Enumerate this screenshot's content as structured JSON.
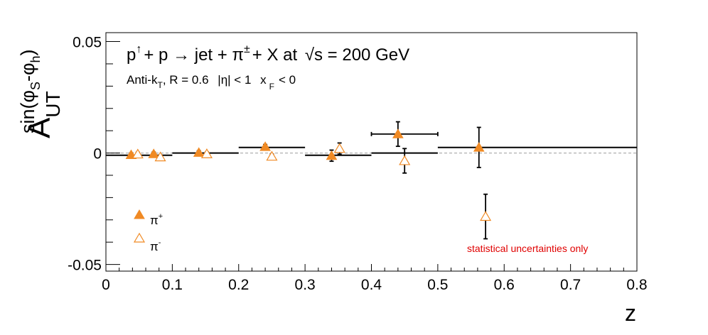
{
  "chart_data": {
    "type": "scatter",
    "title_parts": {
      "p": "p",
      "arrow_up": "↑",
      "plus1": "+ p",
      "reaction_arrow": "→",
      "jet": "jet +",
      "pi": "π",
      "pm": "±",
      "rest": "+ X at",
      "sqrt": "√s",
      "energy": "= 200 GeV"
    },
    "subtitle_parts": {
      "antik": "Anti-k",
      "T": "T",
      "rad": ", R = 0.6",
      "eta": "|η| < 1",
      "x": "x",
      "F": "F",
      "xf": "< 0"
    },
    "ylabel_parts": {
      "A": "A",
      "sub": "UT",
      "sup_sin": "sin(φ",
      "sup_S": "S",
      "sup_mid": "-φ",
      "sup_h": "h",
      "sup_close": ")"
    },
    "xlabel": "z",
    "xlim": [
      0,
      0.8
    ],
    "ylim": [
      -0.053,
      0.054
    ],
    "x_ticks": [
      "0",
      "0.1",
      "0.2",
      "0.3",
      "0.4",
      "0.5",
      "0.6",
      "0.7",
      "0.8"
    ],
    "y_ticks": [
      "-0.05",
      "0",
      "0.05"
    ],
    "zero_line": true,
    "annotation": "statistical uncertainties only",
    "legend": {
      "position": "bottom-left",
      "entries": [
        {
          "symbol": "π",
          "charge": "+",
          "marker": "filled-triangle"
        },
        {
          "symbol": "π",
          "charge": "-",
          "marker": "open-triangle"
        }
      ]
    },
    "colors": {
      "marker": "#f08a24",
      "annotation": "#e00000",
      "zero_line": "#bbbbbb"
    },
    "bins": [
      {
        "lo": 0.0,
        "hi": 0.1,
        "value": -0.001
      },
      {
        "lo": 0.1,
        "hi": 0.2,
        "value": 0.0
      },
      {
        "lo": 0.2,
        "hi": 0.3,
        "value": 0.0025
      },
      {
        "lo": 0.3,
        "hi": 0.4,
        "value": -0.001
      },
      {
        "lo": 0.4,
        "hi": 0.5,
        "value": 0.0
      },
      {
        "lo": 0.5,
        "hi": 0.8,
        "value": 0.0025
      }
    ],
    "series": [
      {
        "name": "π+",
        "marker": "filled",
        "points": [
          {
            "x": 0.038,
            "y": -0.0008,
            "err": 0.0008,
            "xlo": 0.0,
            "xhi": 0.0
          },
          {
            "x": 0.072,
            "y": -0.0004,
            "err": 0.0008,
            "xlo": 0.0,
            "xhi": 0.0
          },
          {
            "x": 0.14,
            "y": 0.0002,
            "err": 0.0008,
            "xlo": 0.0,
            "xhi": 0.0
          },
          {
            "x": 0.24,
            "y": 0.0028,
            "err": 0.001,
            "xlo": 0.0,
            "xhi": 0.0
          },
          {
            "x": 0.34,
            "y": -0.0012,
            "err": 0.0025,
            "xlo": 0.0,
            "xhi": 0.0
          },
          {
            "x": 0.44,
            "y": 0.0085,
            "err": 0.0055,
            "xlo": 0.4,
            "xhi": 0.5
          },
          {
            "x": 0.562,
            "y": 0.0025,
            "err": 0.009,
            "xlo": 0.0,
            "xhi": 0.0
          }
        ]
      },
      {
        "name": "π-",
        "marker": "open",
        "points": [
          {
            "x": 0.048,
            "y": -0.0005,
            "err": 0.0008,
            "xlo": 0.0,
            "xhi": 0.0
          },
          {
            "x": 0.082,
            "y": -0.0018,
            "err": 0.0008,
            "xlo": 0.0,
            "xhi": 0.0
          },
          {
            "x": 0.152,
            "y": -0.0004,
            "err": 0.0008,
            "xlo": 0.0,
            "xhi": 0.0
          },
          {
            "x": 0.25,
            "y": -0.0015,
            "err": 0.001,
            "xlo": 0.0,
            "xhi": 0.0
          },
          {
            "x": 0.352,
            "y": 0.002,
            "err": 0.0025,
            "xlo": 0.0,
            "xhi": 0.0
          },
          {
            "x": 0.45,
            "y": -0.0035,
            "err": 0.0055,
            "xlo": 0.0,
            "xhi": 0.0
          },
          {
            "x": 0.572,
            "y": -0.0285,
            "err": 0.01,
            "xlo": 0.0,
            "xhi": 0.0
          }
        ]
      }
    ]
  }
}
